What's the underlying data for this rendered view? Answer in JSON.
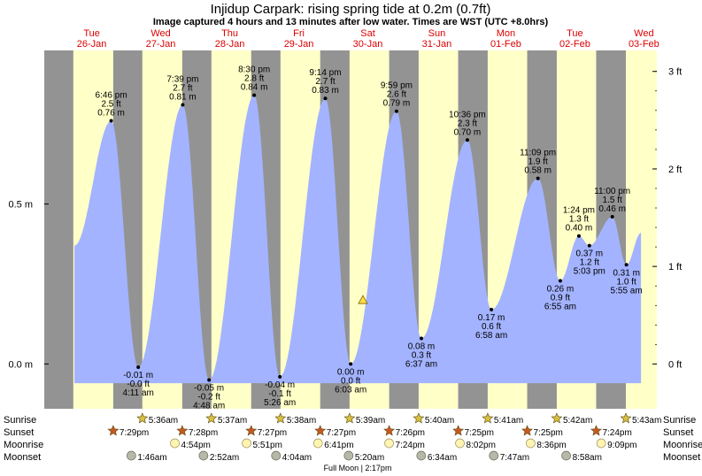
{
  "title": "Injidup Carpark: rising  spring tide at 0.2m (0.7ft)",
  "subtitle": "Image captured 4 hours and 13 minutes after low water. Times are WST (UTC +8.0hrs)",
  "colors": {
    "day_band": "#ffffc8",
    "night_band": "#939393",
    "tide_fill": "#a3b3ff",
    "date_label": "#dd0000",
    "text": "#000000",
    "sunrise_star": "#d8c040",
    "sunset_star": "#c85820",
    "moonrise_circle": "#fff4b0",
    "moonset_circle": "#b8b8a8"
  },
  "days": [
    {
      "dow": "Tue",
      "date": "26-Jan"
    },
    {
      "dow": "Wed",
      "date": "27-Jan"
    },
    {
      "dow": "Thu",
      "date": "28-Jan"
    },
    {
      "dow": "Fri",
      "date": "29-Jan"
    },
    {
      "dow": "Sat",
      "date": "30-Jan"
    },
    {
      "dow": "Sun",
      "date": "31-Jan"
    },
    {
      "dow": "Mon",
      "date": "01-Feb"
    },
    {
      "dow": "Tue",
      "date": "02-Feb"
    },
    {
      "dow": "Wed",
      "date": "03-Feb"
    }
  ],
  "chart_data": {
    "type": "area",
    "x_unit": "hours after 00:00 Tue 26-Jan (WST)",
    "x_range_hours": [
      -4.5,
      208.5
    ],
    "y_left_label_unit": "m",
    "y_left_ticks": [
      {
        "v": 0.0,
        "label": "0.0 m"
      },
      {
        "v": 0.5,
        "label": "0.5 m"
      }
    ],
    "y_right_ticks": [
      {
        "v": 0,
        "label": "0 ft"
      },
      {
        "v": 1,
        "label": "1 ft"
      },
      {
        "v": 2,
        "label": "2 ft"
      },
      {
        "v": 3,
        "label": "3 ft"
      }
    ],
    "y_range_m": [
      -0.14,
      0.98
    ],
    "series": [
      {
        "values": [
          [
            6.0,
            0.37
          ],
          [
            18.77,
            0.76
          ],
          [
            28.18,
            -0.01
          ],
          [
            43.65,
            0.81
          ],
          [
            52.8,
            -0.05
          ],
          [
            68.5,
            0.84
          ],
          [
            77.43,
            -0.04
          ],
          [
            93.23,
            0.83
          ],
          [
            102.05,
            0.0
          ],
          [
            117.98,
            0.79
          ],
          [
            126.62,
            0.08
          ],
          [
            142.6,
            0.7
          ],
          [
            150.97,
            0.17
          ],
          [
            167.15,
            0.58
          ],
          [
            174.92,
            0.26
          ],
          [
            181.4,
            0.4
          ],
          [
            185.05,
            0.37
          ],
          [
            193.0,
            0.46
          ],
          [
            197.92,
            0.31
          ],
          [
            203.0,
            0.41
          ]
        ]
      }
    ],
    "extremes": [
      {
        "h": 18.77,
        "m": 0.76,
        "time": "6:46 pm",
        "ft": "2.5 ft",
        "mtxt": "0.76 m",
        "kind": "high"
      },
      {
        "h": 28.18,
        "m": -0.01,
        "time": "4:11 am",
        "ft": "-0.0 ft",
        "mtxt": "-0.01 m",
        "kind": "low"
      },
      {
        "h": 43.65,
        "m": 0.81,
        "time": "7:39 pm",
        "ft": "2.7 ft",
        "mtxt": "0.81 m",
        "kind": "high"
      },
      {
        "h": 52.8,
        "m": -0.05,
        "time": "4:48 am",
        "ft": "-0.2 ft",
        "mtxt": "-0.05 m",
        "kind": "low"
      },
      {
        "h": 68.5,
        "m": 0.84,
        "time": "8:30 pm",
        "ft": "2.8 ft",
        "mtxt": "0.84 m",
        "kind": "high"
      },
      {
        "h": 77.43,
        "m": -0.04,
        "time": "5:26 am",
        "ft": "-0.1 ft",
        "mtxt": "-0.04 m",
        "kind": "low"
      },
      {
        "h": 93.23,
        "m": 0.83,
        "time": "9:14 pm",
        "ft": "2.7 ft",
        "mtxt": "0.83 m",
        "kind": "high"
      },
      {
        "h": 102.05,
        "m": 0.0,
        "time": "6:03 am",
        "ft": "0.0 ft",
        "mtxt": "0.00 m",
        "kind": "low"
      },
      {
        "h": 117.98,
        "m": 0.79,
        "time": "9:59 pm",
        "ft": "2.6 ft",
        "mtxt": "0.79 m",
        "kind": "high"
      },
      {
        "h": 126.62,
        "m": 0.08,
        "time": "6:37 am",
        "ft": "0.3 ft",
        "mtxt": "0.08 m",
        "kind": "low"
      },
      {
        "h": 142.6,
        "m": 0.7,
        "time": "10:36 pm",
        "ft": "2.3 ft",
        "mtxt": "0.70 m",
        "kind": "high"
      },
      {
        "h": 150.97,
        "m": 0.17,
        "time": "6:58 am",
        "ft": "0.6 ft",
        "mtxt": "0.17 m",
        "kind": "low"
      },
      {
        "h": 167.15,
        "m": 0.58,
        "time": "11:09 pm",
        "ft": "1.9 ft",
        "mtxt": "0.58 m",
        "kind": "high"
      },
      {
        "h": 174.92,
        "m": 0.26,
        "time": "6:55 am",
        "ft": "0.9 ft",
        "mtxt": "0.26 m",
        "kind": "low"
      },
      {
        "h": 181.4,
        "m": 0.4,
        "time": "1:24 pm",
        "ft": "1.3 ft",
        "mtxt": "0.40 m",
        "kind": "high"
      },
      {
        "h": 185.05,
        "m": 0.37,
        "time": "5:03 pm",
        "ft": "1.2 ft",
        "mtxt": "0.37 m",
        "kind": "low"
      },
      {
        "h": 193.0,
        "m": 0.46,
        "time": "11:00 pm",
        "ft": "1.5 ft",
        "mtxt": "0.46 m",
        "kind": "high"
      },
      {
        "h": 197.92,
        "m": 0.31,
        "time": "5:55 am",
        "ft": "1.0 ft",
        "mtxt": "0.31 m",
        "kind": "low"
      }
    ],
    "current": {
      "h": 106.3,
      "m": 0.2
    },
    "nights": [
      [
        -4.5,
        5.6
      ],
      [
        19.48,
        29.6
      ],
      [
        43.47,
        53.62
      ],
      [
        67.45,
        77.63
      ],
      [
        91.45,
        101.65
      ],
      [
        115.43,
        125.67
      ],
      [
        139.42,
        149.68
      ],
      [
        163.42,
        173.7
      ],
      [
        187.4,
        197.72
      ]
    ],
    "sunrise": [
      {
        "h": 29.6,
        "label": "5:36am"
      },
      {
        "h": 53.62,
        "label": "5:37am"
      },
      {
        "h": 77.63,
        "label": "5:38am"
      },
      {
        "h": 101.65,
        "label": "5:39am"
      },
      {
        "h": 125.67,
        "label": "5:40am"
      },
      {
        "h": 149.68,
        "label": "5:41am"
      },
      {
        "h": 173.7,
        "label": "5:42am"
      },
      {
        "h": 197.72,
        "label": "5:43am"
      }
    ],
    "sunset": [
      {
        "h": 19.48,
        "label": "7:29pm"
      },
      {
        "h": 43.47,
        "label": "7:28pm"
      },
      {
        "h": 67.45,
        "label": "7:27pm"
      },
      {
        "h": 91.45,
        "label": "7:27pm"
      },
      {
        "h": 115.43,
        "label": "7:26pm"
      },
      {
        "h": 139.42,
        "label": "7:25pm"
      },
      {
        "h": 163.42,
        "label": "7:25pm"
      },
      {
        "h": 187.4,
        "label": "7:24pm"
      }
    ],
    "moonrise": [
      {
        "h": 40.9,
        "label": "4:54pm"
      },
      {
        "h": 65.85,
        "label": "5:51pm"
      },
      {
        "h": 90.68,
        "label": "6:41pm"
      },
      {
        "h": 115.4,
        "label": "7:24pm"
      },
      {
        "h": 140.03,
        "label": "8:02pm"
      },
      {
        "h": 164.6,
        "label": "8:36pm"
      },
      {
        "h": 189.15,
        "label": "9:09pm"
      }
    ],
    "moonset": [
      {
        "h": 25.77,
        "label": "1:46am"
      },
      {
        "h": 50.87,
        "label": "2:52am"
      },
      {
        "h": 76.07,
        "label": "4:04am"
      },
      {
        "h": 101.33,
        "label": "5:20am"
      },
      {
        "h": 126.57,
        "label": "6:34am"
      },
      {
        "h": 151.78,
        "label": "7:47am"
      },
      {
        "h": 176.97,
        "label": "8:58am"
      }
    ],
    "row_labels": [
      "Sunrise",
      "Sunset",
      "Moonrise",
      "Moonset"
    ],
    "moon_phase": {
      "label": "Full Moon",
      "time": "2:17pm"
    }
  }
}
